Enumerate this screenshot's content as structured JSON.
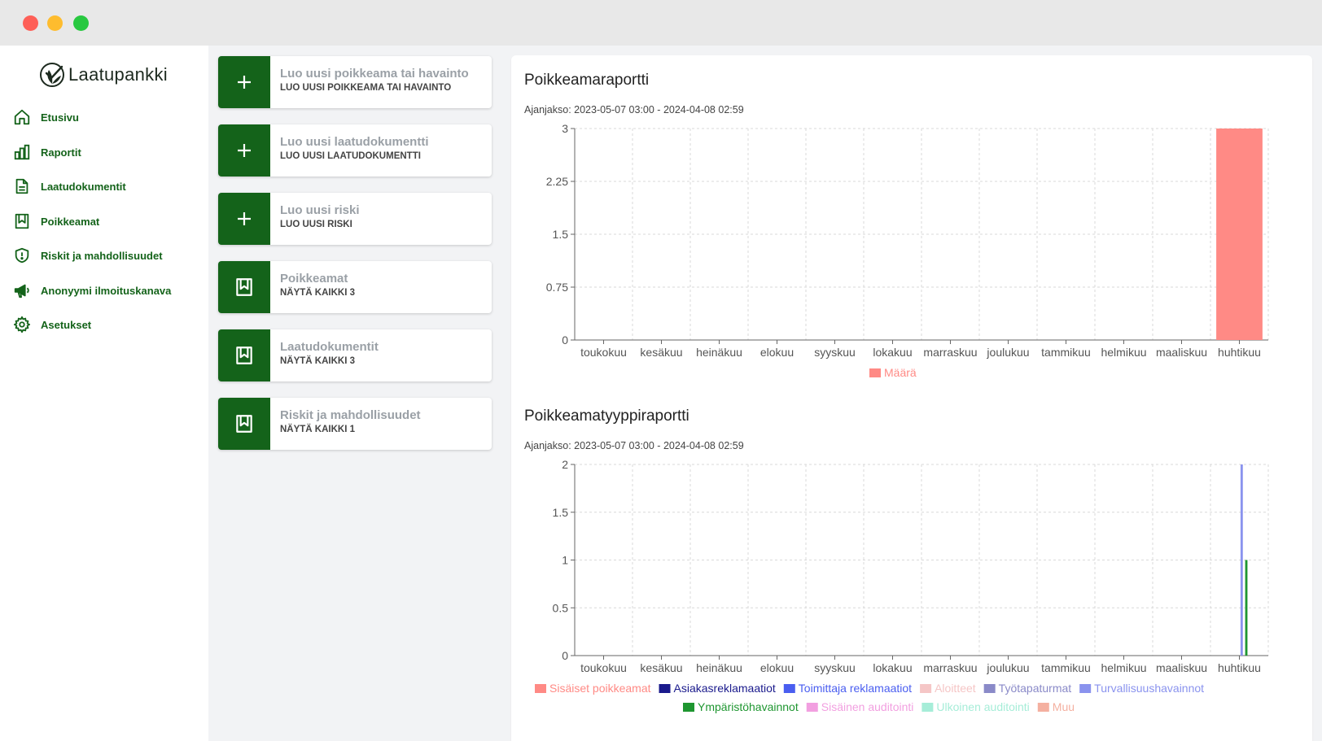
{
  "sidebar": {
    "logo_text": "Laatupankki",
    "items": [
      {
        "label": "Etusivu",
        "icon": "home-icon"
      },
      {
        "label": "Raportit",
        "icon": "bar-chart-icon"
      },
      {
        "label": "Laatudokumentit",
        "icon": "document-icon"
      },
      {
        "label": "Poikkeamat",
        "icon": "bookmark-icon"
      },
      {
        "label": "Riskit ja mahdollisuudet",
        "icon": "shield-icon"
      },
      {
        "label": "Anonyymi ilmoituskanava",
        "icon": "megaphone-icon"
      },
      {
        "label": "Asetukset",
        "icon": "gear-icon"
      }
    ]
  },
  "cards": [
    {
      "title": "Luo uusi poikkeama tai havainto",
      "subtitle": "LUO UUSI POIKKEAMA TAI HAVAINTO",
      "icon": "plus-icon"
    },
    {
      "title": "Luo uusi laatudokumentti",
      "subtitle": "LUO UUSI LAATUDOKUMENTTI",
      "icon": "plus-icon"
    },
    {
      "title": "Luo uusi riski",
      "subtitle": "LUO UUSI RISKI",
      "icon": "plus-icon"
    },
    {
      "title": "Poikkeamat",
      "subtitle": "NÄYTÄ KAIKKI 3",
      "icon": "bookmark-icon"
    },
    {
      "title": "Laatudokumentit",
      "subtitle": "NÄYTÄ KAIKKI 3",
      "icon": "bookmark-icon"
    },
    {
      "title": "Riskit ja mahdollisuudet",
      "subtitle": "NÄYTÄ KAIKKI 1",
      "icon": "bookmark-icon"
    }
  ],
  "colors": {
    "brand": "#14631a"
  },
  "reports": {
    "report1": {
      "title": "Poikkeamaraportti",
      "period": "Ajanjakso: 2023-05-07 03:00 - 2024-04-08 02:59"
    },
    "report2": {
      "title": "Poikkeamatyyppiraportti",
      "period": "Ajanjakso: 2023-05-07 03:00 - 2024-04-08 02:59"
    }
  },
  "chart_data": [
    {
      "type": "bar",
      "title": "Poikkeamaraportti",
      "categories": [
        "toukokuu",
        "kesäkuu",
        "heinäkuu",
        "elokuu",
        "syyskuu",
        "lokakuu",
        "marraskuu",
        "joulukuu",
        "tammikuu",
        "helmikuu",
        "maaliskuu",
        "huhtikuu"
      ],
      "series": [
        {
          "name": "Määrä",
          "color": "#ff8a85",
          "values": [
            0,
            0,
            0,
            0,
            0,
            0,
            0,
            0,
            0,
            0,
            0,
            3
          ]
        }
      ],
      "ylim": [
        0,
        3
      ],
      "yticks": [
        "0",
        "0.75",
        "1.5",
        "2.25",
        "3"
      ],
      "grid": true,
      "legend": "bottom"
    },
    {
      "type": "bar",
      "title": "Poikkeamatyyppiraportti",
      "categories": [
        "toukokuu",
        "kesäkuu",
        "heinäkuu",
        "elokuu",
        "syyskuu",
        "lokakuu",
        "marraskuu",
        "joulukuu",
        "tammikuu",
        "helmikuu",
        "maaliskuu",
        "huhtikuu"
      ],
      "series": [
        {
          "name": "Sisäiset poikkeamat",
          "color": "#ff8a85",
          "values": [
            0,
            0,
            0,
            0,
            0,
            0,
            0,
            0,
            0,
            0,
            0,
            0
          ]
        },
        {
          "name": "Asiakasreklamaatiot",
          "color": "#1a1a8c",
          "values": [
            0,
            0,
            0,
            0,
            0,
            0,
            0,
            0,
            0,
            0,
            0,
            0
          ]
        },
        {
          "name": "Toimittaja reklamaatiot",
          "color": "#4a5ef0",
          "values": [
            0,
            0,
            0,
            0,
            0,
            0,
            0,
            0,
            0,
            0,
            0,
            0
          ]
        },
        {
          "name": "Aloitteet",
          "color": "#f5c6c6",
          "values": [
            0,
            0,
            0,
            0,
            0,
            0,
            0,
            0,
            0,
            0,
            0,
            0
          ]
        },
        {
          "name": "Työtapaturmat",
          "color": "#8a8ac8",
          "values": [
            0,
            0,
            0,
            0,
            0,
            0,
            0,
            0,
            0,
            0,
            0,
            0
          ]
        },
        {
          "name": "Turvallisuushavainnot",
          "color": "#8a93ee",
          "values": [
            0,
            0,
            0,
            0,
            0,
            0,
            0,
            0,
            0,
            0,
            0,
            2
          ]
        },
        {
          "name": "Ympäristöhavainnot",
          "color": "#1e9630",
          "values": [
            0,
            0,
            0,
            0,
            0,
            0,
            0,
            0,
            0,
            0,
            0,
            1
          ]
        },
        {
          "name": "Sisäinen auditointi",
          "color": "#f29fe0",
          "values": [
            0,
            0,
            0,
            0,
            0,
            0,
            0,
            0,
            0,
            0,
            0,
            0
          ]
        },
        {
          "name": "Ulkoinen auditointi",
          "color": "#a6edd8",
          "values": [
            0,
            0,
            0,
            0,
            0,
            0,
            0,
            0,
            0,
            0,
            0,
            0
          ]
        },
        {
          "name": "Muu",
          "color": "#f4b0a0",
          "values": [
            0,
            0,
            0,
            0,
            0,
            0,
            0,
            0,
            0,
            0,
            0,
            0
          ]
        }
      ],
      "ylim": [
        0,
        2
      ],
      "yticks": [
        "0",
        "0.5",
        "1",
        "1.5",
        "2"
      ],
      "grid": true,
      "legend": "bottom"
    }
  ]
}
